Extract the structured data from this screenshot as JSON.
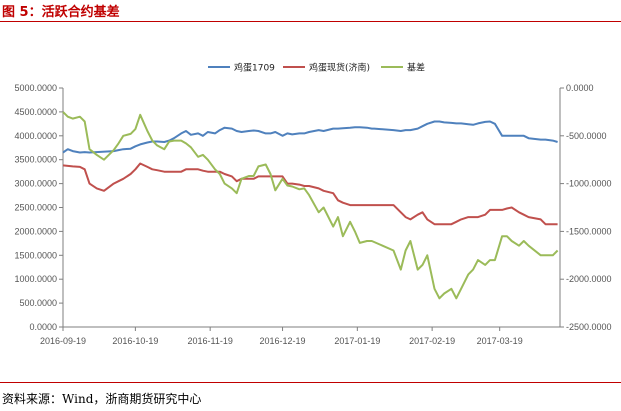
{
  "header": {
    "title": "图 5：活跃合约基差"
  },
  "footer": {
    "source": "资料来源：Wind，浙商期货研究中心"
  },
  "colors": {
    "title": "#c00000",
    "axis": "#7f7f7f",
    "grid": "#e0e0e0"
  },
  "chart_data": {
    "type": "line",
    "grid": false,
    "legend_position": "top",
    "left_axis": {
      "range": [
        0,
        5000
      ],
      "ticks": [
        "0.0000",
        "500.0000",
        "1000.0000",
        "1500.0000",
        "2000.0000",
        "2500.0000",
        "3000.0000",
        "3500.0000",
        "4000.0000",
        "4500.0000",
        "5000.0000"
      ],
      "tick_values": [
        0,
        500,
        1000,
        1500,
        2000,
        2500,
        3000,
        3500,
        4000,
        4500,
        5000
      ]
    },
    "right_axis": {
      "range": [
        -2500,
        0
      ],
      "ticks": [
        "-2500.0000",
        "-2000.0000",
        "-1500.0000",
        "-1000.0000",
        "-500.0000",
        "0.0000"
      ],
      "tick_values": [
        -2500,
        -2000,
        -1500,
        -1000,
        -500,
        0
      ]
    },
    "x_range": [
      "2016-09-19",
      "2017-04-13"
    ],
    "x_ticks": [
      "2016-09-19",
      "2016-10-19",
      "2016-11-19",
      "2016-12-19",
      "2017-01-19",
      "2017-02-19",
      "2017-03-19"
    ],
    "series": [
      {
        "name": "鸡蛋1709",
        "axis": "left",
        "color": "#4f81bd",
        "points": [
          [
            "2016-09-19",
            3650
          ],
          [
            "2016-09-21",
            3720
          ],
          [
            "2016-09-23",
            3680
          ],
          [
            "2016-09-26",
            3650
          ],
          [
            "2016-09-28",
            3660
          ],
          [
            "2016-09-30",
            3650
          ],
          [
            "2016-10-10",
            3680
          ],
          [
            "2016-10-12",
            3700
          ],
          [
            "2016-10-14",
            3720
          ],
          [
            "2016-10-17",
            3730
          ],
          [
            "2016-10-19",
            3780
          ],
          [
            "2016-10-21",
            3820
          ],
          [
            "2016-10-24",
            3860
          ],
          [
            "2016-10-26",
            3880
          ],
          [
            "2016-10-28",
            3880
          ],
          [
            "2016-10-31",
            3870
          ],
          [
            "2016-11-02",
            3900
          ],
          [
            "2016-11-04",
            3950
          ],
          [
            "2016-11-07",
            4050
          ],
          [
            "2016-11-09",
            4100
          ],
          [
            "2016-11-11",
            4020
          ],
          [
            "2016-11-14",
            4050
          ],
          [
            "2016-11-16",
            4000
          ],
          [
            "2016-11-18",
            4080
          ],
          [
            "2016-11-21",
            4050
          ],
          [
            "2016-11-23",
            4120
          ],
          [
            "2016-11-25",
            4170
          ],
          [
            "2016-11-28",
            4150
          ],
          [
            "2016-11-30",
            4100
          ],
          [
            "2016-12-02",
            4080
          ],
          [
            "2016-12-05",
            4100
          ],
          [
            "2016-12-07",
            4110
          ],
          [
            "2016-12-09",
            4100
          ],
          [
            "2016-12-12",
            4050
          ],
          [
            "2016-12-14",
            4050
          ],
          [
            "2016-12-16",
            4080
          ],
          [
            "2016-12-19",
            4000
          ],
          [
            "2016-12-21",
            4050
          ],
          [
            "2016-12-23",
            4030
          ],
          [
            "2016-12-26",
            4050
          ],
          [
            "2016-12-28",
            4050
          ],
          [
            "2016-12-30",
            4080
          ],
          [
            "2017-01-03",
            4120
          ],
          [
            "2017-01-05",
            4100
          ],
          [
            "2017-01-09",
            4150
          ],
          [
            "2017-01-11",
            4150
          ],
          [
            "2017-01-13",
            4160
          ],
          [
            "2017-01-16",
            4170
          ],
          [
            "2017-01-18",
            4180
          ],
          [
            "2017-01-20",
            4180
          ],
          [
            "2017-01-23",
            4170
          ],
          [
            "2017-01-25",
            4150
          ],
          [
            "2017-01-26",
            4150
          ],
          [
            "2017-02-03",
            4120
          ],
          [
            "2017-02-06",
            4100
          ],
          [
            "2017-02-08",
            4120
          ],
          [
            "2017-02-10",
            4120
          ],
          [
            "2017-02-13",
            4150
          ],
          [
            "2017-02-15",
            4200
          ],
          [
            "2017-02-17",
            4250
          ],
          [
            "2017-02-20",
            4300
          ],
          [
            "2017-02-22",
            4300
          ],
          [
            "2017-02-24",
            4280
          ],
          [
            "2017-02-27",
            4270
          ],
          [
            "2017-03-01",
            4260
          ],
          [
            "2017-03-03",
            4260
          ],
          [
            "2017-03-06",
            4240
          ],
          [
            "2017-03-08",
            4230
          ],
          [
            "2017-03-10",
            4260
          ],
          [
            "2017-03-13",
            4290
          ],
          [
            "2017-03-15",
            4300
          ],
          [
            "2017-03-17",
            4250
          ],
          [
            "2017-03-20",
            4000
          ],
          [
            "2017-03-22",
            4000
          ],
          [
            "2017-03-24",
            4000
          ],
          [
            "2017-03-27",
            4000
          ],
          [
            "2017-03-29",
            4000
          ],
          [
            "2017-03-31",
            3950
          ],
          [
            "2017-04-05",
            3920
          ],
          [
            "2017-04-07",
            3920
          ],
          [
            "2017-04-10",
            3900
          ],
          [
            "2017-04-12",
            3870
          ]
        ]
      },
      {
        "name": "鸡蛋现货(济南)",
        "axis": "left",
        "color": "#c0504d",
        "points": [
          [
            "2016-09-19",
            3380
          ],
          [
            "2016-09-21",
            3370
          ],
          [
            "2016-09-23",
            3360
          ],
          [
            "2016-09-26",
            3350
          ],
          [
            "2016-09-28",
            3300
          ],
          [
            "2016-09-30",
            3000
          ],
          [
            "2016-10-03",
            2900
          ],
          [
            "2016-10-06",
            2850
          ],
          [
            "2016-10-10",
            3000
          ],
          [
            "2016-10-12",
            3050
          ],
          [
            "2016-10-14",
            3100
          ],
          [
            "2016-10-17",
            3200
          ],
          [
            "2016-10-19",
            3300
          ],
          [
            "2016-10-21",
            3420
          ],
          [
            "2016-10-24",
            3350
          ],
          [
            "2016-10-26",
            3300
          ],
          [
            "2016-10-28",
            3280
          ],
          [
            "2016-10-31",
            3250
          ],
          [
            "2016-11-02",
            3250
          ],
          [
            "2016-11-04",
            3250
          ],
          [
            "2016-11-07",
            3250
          ],
          [
            "2016-11-09",
            3300
          ],
          [
            "2016-11-11",
            3300
          ],
          [
            "2016-11-14",
            3300
          ],
          [
            "2016-11-16",
            3270
          ],
          [
            "2016-11-18",
            3250
          ],
          [
            "2016-11-21",
            3250
          ],
          [
            "2016-11-23",
            3250
          ],
          [
            "2016-11-25",
            3200
          ],
          [
            "2016-11-28",
            3150
          ],
          [
            "2016-11-30",
            3050
          ],
          [
            "2016-12-02",
            3100
          ],
          [
            "2016-12-05",
            3100
          ],
          [
            "2016-12-07",
            3100
          ],
          [
            "2016-12-09",
            3150
          ],
          [
            "2016-12-12",
            3150
          ],
          [
            "2016-12-14",
            3150
          ],
          [
            "2016-12-16",
            3150
          ],
          [
            "2016-12-19",
            3150
          ],
          [
            "2016-12-21",
            3000
          ],
          [
            "2016-12-23",
            3000
          ],
          [
            "2016-12-26",
            2980
          ],
          [
            "2016-12-28",
            2950
          ],
          [
            "2016-12-30",
            2950
          ],
          [
            "2017-01-03",
            2900
          ],
          [
            "2017-01-05",
            2850
          ],
          [
            "2017-01-09",
            2800
          ],
          [
            "2017-01-11",
            2650
          ],
          [
            "2017-01-13",
            2600
          ],
          [
            "2017-01-16",
            2550
          ],
          [
            "2017-01-18",
            2550
          ],
          [
            "2017-01-20",
            2550
          ],
          [
            "2017-01-23",
            2550
          ],
          [
            "2017-01-25",
            2550
          ],
          [
            "2017-02-03",
            2550
          ],
          [
            "2017-02-06",
            2400
          ],
          [
            "2017-02-08",
            2300
          ],
          [
            "2017-02-10",
            2250
          ],
          [
            "2017-02-13",
            2350
          ],
          [
            "2017-02-15",
            2400
          ],
          [
            "2017-02-17",
            2250
          ],
          [
            "2017-02-20",
            2150
          ],
          [
            "2017-02-22",
            2150
          ],
          [
            "2017-02-24",
            2150
          ],
          [
            "2017-02-27",
            2150
          ],
          [
            "2017-03-01",
            2200
          ],
          [
            "2017-03-03",
            2250
          ],
          [
            "2017-03-06",
            2300
          ],
          [
            "2017-03-08",
            2300
          ],
          [
            "2017-03-10",
            2300
          ],
          [
            "2017-03-13",
            2350
          ],
          [
            "2017-03-15",
            2450
          ],
          [
            "2017-03-17",
            2450
          ],
          [
            "2017-03-20",
            2450
          ],
          [
            "2017-03-22",
            2480
          ],
          [
            "2017-03-24",
            2500
          ],
          [
            "2017-03-27",
            2400
          ],
          [
            "2017-03-29",
            2350
          ],
          [
            "2017-03-31",
            2300
          ],
          [
            "2017-04-05",
            2250
          ],
          [
            "2017-04-07",
            2150
          ],
          [
            "2017-04-10",
            2150
          ],
          [
            "2017-04-12",
            2150
          ]
        ]
      },
      {
        "name": "基差",
        "axis": "right",
        "color": "#9bbb59",
        "points": [
          [
            "2016-09-19",
            -250
          ],
          [
            "2016-09-21",
            -300
          ],
          [
            "2016-09-23",
            -320
          ],
          [
            "2016-09-26",
            -300
          ],
          [
            "2016-09-28",
            -350
          ],
          [
            "2016-09-30",
            -640
          ],
          [
            "2016-10-03",
            -700
          ],
          [
            "2016-10-06",
            -750
          ],
          [
            "2016-10-10",
            -650
          ],
          [
            "2016-10-12",
            -580
          ],
          [
            "2016-10-14",
            -500
          ],
          [
            "2016-10-17",
            -480
          ],
          [
            "2016-10-19",
            -430
          ],
          [
            "2016-10-21",
            -280
          ],
          [
            "2016-10-24",
            -450
          ],
          [
            "2016-10-26",
            -550
          ],
          [
            "2016-10-28",
            -600
          ],
          [
            "2016-10-31",
            -640
          ],
          [
            "2016-11-02",
            -560
          ],
          [
            "2016-11-04",
            -550
          ],
          [
            "2016-11-07",
            -550
          ],
          [
            "2016-11-09",
            -580
          ],
          [
            "2016-11-11",
            -620
          ],
          [
            "2016-11-14",
            -720
          ],
          [
            "2016-11-16",
            -700
          ],
          [
            "2016-11-18",
            -750
          ],
          [
            "2016-11-21",
            -850
          ],
          [
            "2016-11-23",
            -900
          ],
          [
            "2016-11-25",
            -1000
          ],
          [
            "2016-11-28",
            -1050
          ],
          [
            "2016-11-30",
            -1100
          ],
          [
            "2016-12-02",
            -950
          ],
          [
            "2016-12-05",
            -920
          ],
          [
            "2016-12-07",
            -920
          ],
          [
            "2016-12-09",
            -820
          ],
          [
            "2016-12-12",
            -800
          ],
          [
            "2016-12-14",
            -900
          ],
          [
            "2016-12-16",
            -1070
          ],
          [
            "2016-12-19",
            -950
          ],
          [
            "2016-12-21",
            -1020
          ],
          [
            "2016-12-23",
            -1030
          ],
          [
            "2016-12-26",
            -1060
          ],
          [
            "2016-12-28",
            -1050
          ],
          [
            "2016-12-30",
            -1120
          ],
          [
            "2017-01-03",
            -1300
          ],
          [
            "2017-01-05",
            -1250
          ],
          [
            "2017-01-09",
            -1450
          ],
          [
            "2017-01-11",
            -1350
          ],
          [
            "2017-01-13",
            -1550
          ],
          [
            "2017-01-16",
            -1400
          ],
          [
            "2017-01-18",
            -1500
          ],
          [
            "2017-01-20",
            -1620
          ],
          [
            "2017-01-23",
            -1600
          ],
          [
            "2017-01-25",
            -1600
          ],
          [
            "2017-02-03",
            -1700
          ],
          [
            "2017-02-06",
            -1900
          ],
          [
            "2017-02-08",
            -1700
          ],
          [
            "2017-02-10",
            -1600
          ],
          [
            "2017-02-13",
            -1900
          ],
          [
            "2017-02-15",
            -1850
          ],
          [
            "2017-02-17",
            -1750
          ],
          [
            "2017-02-20",
            -2100
          ],
          [
            "2017-02-22",
            -2200
          ],
          [
            "2017-02-24",
            -2150
          ],
          [
            "2017-02-27",
            -2100
          ],
          [
            "2017-03-01",
            -2200
          ],
          [
            "2017-03-03",
            -2100
          ],
          [
            "2017-03-06",
            -1950
          ],
          [
            "2017-03-08",
            -1900
          ],
          [
            "2017-03-10",
            -1800
          ],
          [
            "2017-03-13",
            -1850
          ],
          [
            "2017-03-15",
            -1800
          ],
          [
            "2017-03-17",
            -1800
          ],
          [
            "2017-03-20",
            -1550
          ],
          [
            "2017-03-22",
            -1550
          ],
          [
            "2017-03-24",
            -1600
          ],
          [
            "2017-03-27",
            -1650
          ],
          [
            "2017-03-29",
            -1600
          ],
          [
            "2017-03-31",
            -1650
          ],
          [
            "2017-04-05",
            -1750
          ],
          [
            "2017-04-07",
            -1750
          ],
          [
            "2017-04-10",
            -1750
          ],
          [
            "2017-04-12",
            -1700
          ]
        ]
      }
    ]
  }
}
